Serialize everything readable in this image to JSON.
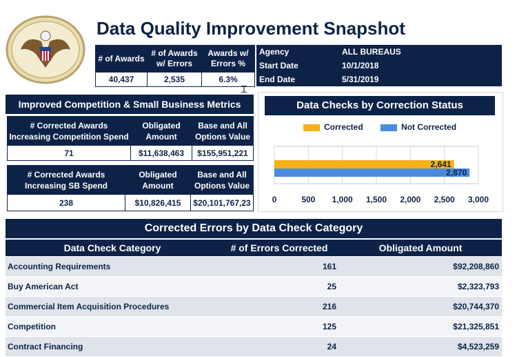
{
  "header": {
    "title": "Data Quality Improvement Snapshot",
    "seal_icon": "eagle-seal-icon"
  },
  "kpi": {
    "headers": [
      "# of Awards",
      "# of Awards w/ Errors",
      "Awards w/ Errors %"
    ],
    "values": [
      "40,437",
      "2,535",
      "6.3%"
    ]
  },
  "agency": {
    "rows": [
      {
        "label": "Agency",
        "value": "ALL BUREAUS"
      },
      {
        "label": "Start Date",
        "value": "10/1/2018"
      },
      {
        "label": "End Date",
        "value": "5/31/2019"
      }
    ]
  },
  "competition": {
    "title": "Improved Competition & Small Business Metrics",
    "table1": {
      "headers": [
        "# Corrected Awards Increasing Competition Spend",
        "Obligated Amount",
        "Base and All Options Value"
      ],
      "values": [
        "71",
        "$11,638,463",
        "$155,951,221"
      ]
    },
    "table2": {
      "headers": [
        "# Corrected Awards Increasing SB Spend",
        "Obligated Amount",
        "Base and All Options Value"
      ],
      "values": [
        "238",
        "$10,826,415",
        "$20,101,767,23"
      ]
    }
  },
  "chart_data": {
    "type": "bar",
    "orientation": "horizontal",
    "title": "Data Checks by Correction Status",
    "series": [
      {
        "name": "Corrected",
        "values": [
          2641
        ],
        "color": "#f5b01a"
      },
      {
        "name": "Not Corrected",
        "values": [
          2870
        ],
        "color": "#4a8be0"
      }
    ],
    "data_labels": [
      "2,641",
      "2,870"
    ],
    "x_ticks": [
      "0",
      "500",
      "1,000",
      "1,500",
      "2,000",
      "2,500",
      "3,000"
    ],
    "xlim": [
      0,
      3000
    ],
    "legend_position": "top",
    "grid": true
  },
  "errors": {
    "title": "Corrected Errors by Data Check Category",
    "headers": [
      "Data Check Category",
      "# of Errors Corrected",
      "Obligated Amount"
    ],
    "rows": [
      {
        "category": "Accounting Requirements",
        "count": "161",
        "amount": "$92,208,860"
      },
      {
        "category": "Buy American Act",
        "count": "25",
        "amount": "$2,323,793"
      },
      {
        "category": "Commercial Item Acquisition Procedures",
        "count": "216",
        "amount": "$20,744,370"
      },
      {
        "category": "Competition",
        "count": "125",
        "amount": "$21,325,851"
      },
      {
        "category": "Contract Financing",
        "count": "24",
        "amount": "$4,523,259"
      }
    ]
  }
}
